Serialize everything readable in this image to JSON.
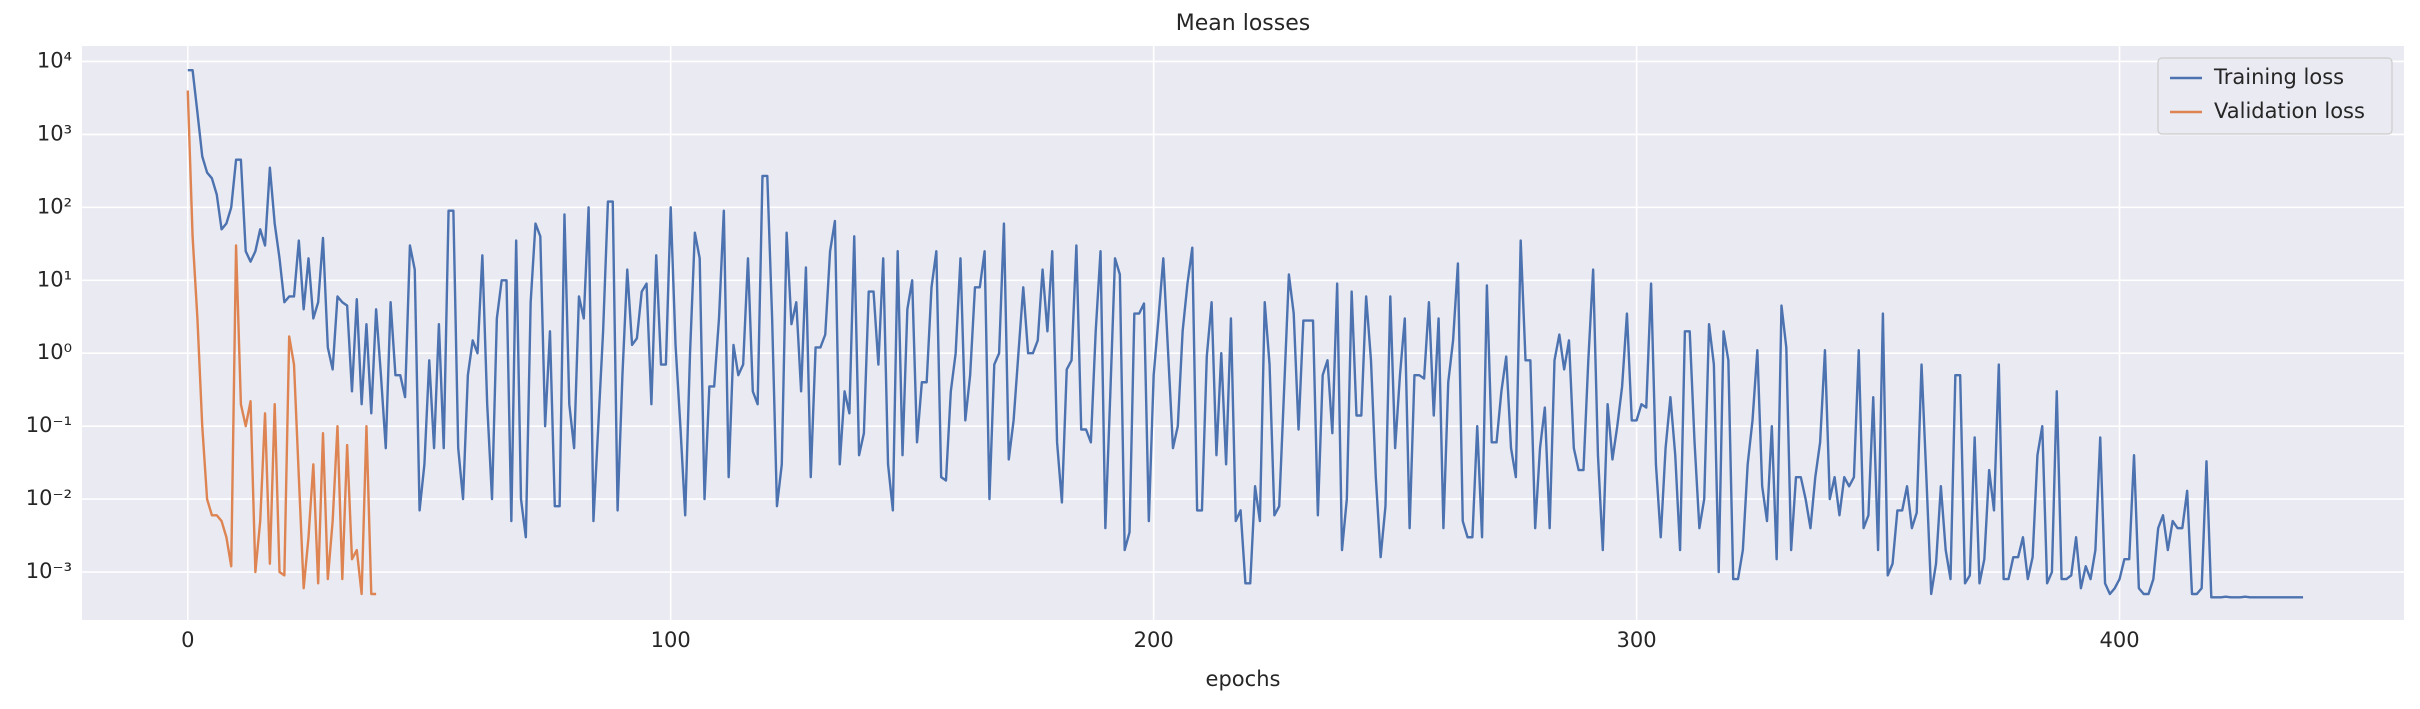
{
  "chart_data": {
    "type": "line",
    "title": "Mean losses",
    "x_label": "epochs",
    "log_y": true,
    "grid": true,
    "legend": "upper right",
    "xlim": [
      -21.9,
      458.9
    ],
    "xticks": [
      0,
      100,
      200,
      300,
      400
    ],
    "ylim": [
      0.00022,
      16300
    ],
    "yticks": [
      {
        "value": 0.001,
        "label": "10⁻³"
      },
      {
        "value": 0.01,
        "label": "10⁻²"
      },
      {
        "value": 0.1,
        "label": "10⁻¹"
      },
      {
        "value": 1,
        "label": "10⁰"
      },
      {
        "value": 10,
        "label": "10¹"
      },
      {
        "value": 100,
        "label": "10²"
      },
      {
        "value": 1000,
        "label": "10³"
      },
      {
        "value": 10000,
        "label": "10⁴"
      }
    ],
    "series": [
      {
        "name": "Training loss",
        "color": "#4c72b0",
        "values": [
          7600,
          7600,
          2000,
          500,
          300,
          250,
          150,
          50,
          60,
          100,
          450,
          450,
          25,
          18,
          25,
          50,
          30,
          350,
          60,
          20,
          5,
          6,
          6,
          35,
          4,
          20,
          3,
          5,
          38,
          1.2,
          0.6,
          6,
          5,
          4.5,
          0.3,
          5.5,
          0.2,
          2.5,
          0.15,
          4,
          0.5,
          0.05,
          5,
          0.5,
          0.5,
          0.25,
          30,
          14,
          0.007,
          0.03,
          0.8,
          0.05,
          2.5,
          0.05,
          90,
          90,
          0.05,
          0.01,
          0.5,
          1.5,
          1,
          22,
          0.2,
          0.01,
          3,
          10,
          10,
          0.005,
          35,
          0.01,
          0.003,
          5,
          60,
          40,
          0.1,
          2,
          0.008,
          0.008,
          80,
          0.2,
          0.05,
          6,
          3,
          100,
          0.005,
          0.1,
          2,
          120,
          120,
          0.007,
          0.5,
          14,
          1.3,
          1.6,
          7,
          9,
          0.2,
          22,
          0.7,
          0.7,
          100,
          1.3,
          0.1,
          0.006,
          1,
          45,
          20,
          0.01,
          0.35,
          0.35,
          3,
          90,
          0.02,
          1.3,
          0.5,
          0.7,
          20,
          0.3,
          0.2,
          270,
          270,
          3,
          0.008,
          0.03,
          45,
          2.5,
          5,
          0.3,
          15,
          0.02,
          1.2,
          1.2,
          1.8,
          25,
          65,
          0.03,
          0.3,
          0.15,
          40,
          0.04,
          0.08,
          7,
          7,
          0.7,
          20,
          0.03,
          0.007,
          25,
          0.04,
          4,
          10,
          0.06,
          0.4,
          0.4,
          8,
          25,
          0.02,
          0.018,
          0.3,
          1,
          20,
          0.12,
          0.5,
          8,
          8,
          25,
          0.01,
          0.7,
          1,
          60,
          0.035,
          0.12,
          1,
          8,
          1,
          1,
          1.5,
          14,
          2,
          25,
          0.06,
          0.009,
          0.6,
          0.8,
          30,
          0.09,
          0.09,
          0.06,
          2,
          25,
          0.004,
          0.25,
          20,
          12,
          0.002,
          0.0035,
          3.5,
          3.5,
          4.8,
          0.005,
          0.5,
          3,
          20,
          1,
          0.05,
          0.1,
          2,
          9,
          28,
          0.007,
          0.007,
          0.9,
          5,
          0.04,
          1,
          0.03,
          3,
          0.005,
          0.007,
          0.0007,
          0.0007,
          0.015,
          0.005,
          5,
          0.7,
          0.006,
          0.008,
          0.3,
          12,
          3.5,
          0.09,
          2.8,
          2.8,
          2.8,
          0.006,
          0.5,
          0.8,
          0.08,
          9,
          0.002,
          0.01,
          7,
          0.14,
          0.14,
          6,
          0.8,
          0.02,
          0.0016,
          0.008,
          6,
          0.05,
          0.5,
          3,
          0.004,
          0.5,
          0.5,
          0.45,
          5,
          0.14,
          3,
          0.004,
          0.4,
          1.5,
          17,
          0.005,
          0.003,
          0.003,
          0.1,
          0.003,
          8.5,
          0.06,
          0.06,
          0.3,
          0.9,
          0.05,
          0.02,
          35,
          0.8,
          0.8,
          0.004,
          0.05,
          0.18,
          0.004,
          0.8,
          1.8,
          0.6,
          1.5,
          0.05,
          0.025,
          0.025,
          0.8,
          14,
          0.04,
          0.002,
          0.2,
          0.035,
          0.1,
          0.35,
          3.5,
          0.12,
          0.12,
          0.2,
          0.18,
          9,
          0.03,
          0.003,
          0.05,
          0.25,
          0.04,
          0.002,
          2,
          2,
          0.06,
          0.004,
          0.01,
          2.5,
          0.7,
          0.001,
          2,
          0.8,
          0.0008,
          0.0008,
          0.002,
          0.03,
          0.12,
          1.1,
          0.015,
          0.005,
          0.1,
          0.0015,
          4.5,
          1.2,
          0.002,
          0.02,
          0.02,
          0.01,
          0.004,
          0.02,
          0.06,
          1.1,
          0.01,
          0.02,
          0.006,
          0.02,
          0.015,
          0.02,
          1.1,
          0.004,
          0.006,
          0.25,
          0.002,
          3.5,
          0.0009,
          0.0013,
          0.007,
          0.007,
          0.015,
          0.004,
          0.0065,
          0.7,
          0.02,
          0.0005,
          0.0013,
          0.015,
          0.002,
          0.0008,
          0.5,
          0.5,
          0.0007,
          0.0009,
          0.07,
          0.0007,
          0.0015,
          0.025,
          0.007,
          0.7,
          0.0008,
          0.0008,
          0.0016,
          0.0016,
          0.003,
          0.0008,
          0.0016,
          0.04,
          0.1,
          0.0007,
          0.001,
          0.3,
          0.0008,
          0.0008,
          0.0009,
          0.003,
          0.0006,
          0.0012,
          0.0008,
          0.002,
          0.07,
          0.0007,
          0.0005,
          0.0006,
          0.0008,
          0.0015,
          0.0015,
          0.04,
          0.0006,
          0.0005,
          0.0005,
          0.0008,
          0.004,
          0.006,
          0.002,
          0.005,
          0.004,
          0.004,
          0.013,
          0.0005,
          0.0005,
          0.0006,
          0.033,
          0.00045,
          0.00045,
          0.00045,
          0.00046,
          0.00045,
          0.00045,
          0.00045,
          0.00046,
          0.00045,
          0.00045,
          0.00045,
          0.00045,
          0.00045,
          0.00045,
          0.00045,
          0.00045,
          0.00045,
          0.00045,
          0.00045,
          0.00045
        ]
      },
      {
        "name": "Validation loss",
        "color": "#dd8452",
        "values": [
          4000,
          40,
          3,
          0.1,
          0.01,
          0.006,
          0.006,
          0.005,
          0.003,
          0.0012,
          30,
          0.2,
          0.1,
          0.22,
          0.001,
          0.005,
          0.15,
          0.0013,
          0.2,
          0.001,
          0.0009,
          1.7,
          0.7,
          0.02,
          0.0006,
          0.003,
          0.03,
          0.0007,
          0.08,
          0.0008,
          0.005,
          0.1,
          0.0008,
          0.055,
          0.0015,
          0.002,
          0.0005,
          0.1,
          0.0005,
          0.0005
        ]
      }
    ]
  }
}
